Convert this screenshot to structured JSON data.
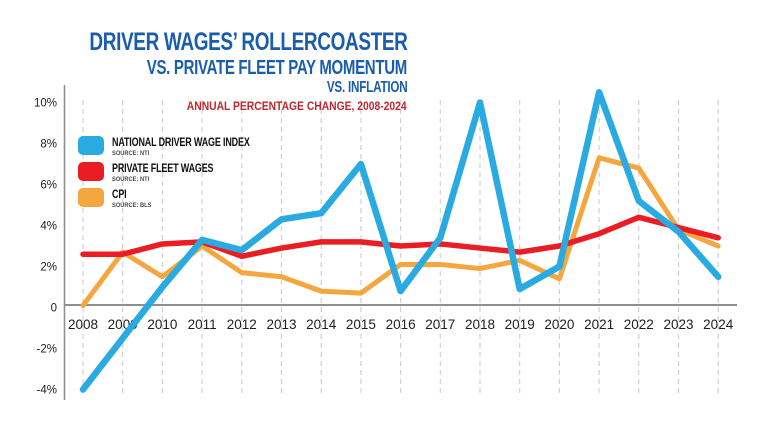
{
  "header": {
    "title_line1": "DRIVER WAGES’ ROLLERCOASTER",
    "title_line2": "VS. PRIVATE FLEET PAY MOMENTUM",
    "title_line3": "VS. INFLATION",
    "tagline": "ANNUAL PERCENTAGE CHANGE, 2008-2024",
    "title_color": "#1A5DAB",
    "tagline_color": "#C1272D"
  },
  "legend": {
    "position": "upper-left",
    "items": [
      {
        "label": "NATIONAL DRIVER WAGE INDEX",
        "source": "SOURCE: NTI",
        "color": "#29ABE2"
      },
      {
        "label": "PRIVATE FLEET WAGES",
        "source": "SOURCE: NTI",
        "color": "#EA1C24"
      },
      {
        "label": "CPI",
        "source": "SOURCE: BLS",
        "color": "#F5A63F"
      }
    ]
  },
  "chart_data": {
    "type": "line",
    "title": "DRIVER WAGES’ ROLLERCOASTER VS. PRIVATE FLEET PAY MOMENTUM VS. INFLATION",
    "subtitle": "ANNUAL PERCENTAGE CHANGE, 2008-2024",
    "xlabel": "",
    "ylabel": "",
    "categories": [
      "2008",
      "2009",
      "2010",
      "2011",
      "2012",
      "2013",
      "2014",
      "2015",
      "2016",
      "2017",
      "2018",
      "2019",
      "2020",
      "2021",
      "2022",
      "2023",
      "2024"
    ],
    "series": [
      {
        "name": "NATIONAL DRIVER WAGE INDEX",
        "source": "SOURCE: NTI",
        "color": "#29ABE2",
        "stroke_width": 6.5,
        "values": [
          -4.0,
          -1.5,
          1.0,
          3.3,
          2.8,
          4.3,
          4.6,
          7.0,
          0.8,
          3.4,
          10.0,
          0.9,
          2.0,
          10.5,
          5.2,
          3.7,
          1.5
        ]
      },
      {
        "name": "PRIVATE FLEET WAGES",
        "source": "SOURCE: NTI",
        "color": "#EA1C24",
        "stroke_width": 5.5,
        "values": [
          2.6,
          2.6,
          3.1,
          3.2,
          2.5,
          2.9,
          3.2,
          3.2,
          3.0,
          3.1,
          2.9,
          2.7,
          3.0,
          3.6,
          4.4,
          3.9,
          3.4
        ]
      },
      {
        "name": "CPI",
        "source": "SOURCE: BLS",
        "color": "#F5A63F",
        "stroke_width": 5,
        "values": [
          0.1,
          2.7,
          1.5,
          3.0,
          1.7,
          1.5,
          0.8,
          0.7,
          2.1,
          2.1,
          1.9,
          2.3,
          1.4,
          7.3,
          6.8,
          3.8,
          3.0
        ]
      }
    ],
    "y_ticks": [
      {
        "label": "10%",
        "value": 10
      },
      {
        "label": "8%",
        "value": 8
      },
      {
        "label": "6%",
        "value": 6
      },
      {
        "label": "4%",
        "value": 4
      },
      {
        "label": "2%",
        "value": 2
      },
      {
        "label": "0",
        "value": 0
      },
      {
        "label": "-2%",
        "value": -2
      },
      {
        "label": "-4%",
        "value": -4
      }
    ],
    "ylim": [
      -4.6,
      11.2
    ],
    "grid": "vertical dashed line at each year",
    "legend_position": "upper left",
    "axis_color": "#8F8F8F",
    "gridline_color": "#D2D2D2",
    "tick_label_color": "#1D1D1D"
  }
}
